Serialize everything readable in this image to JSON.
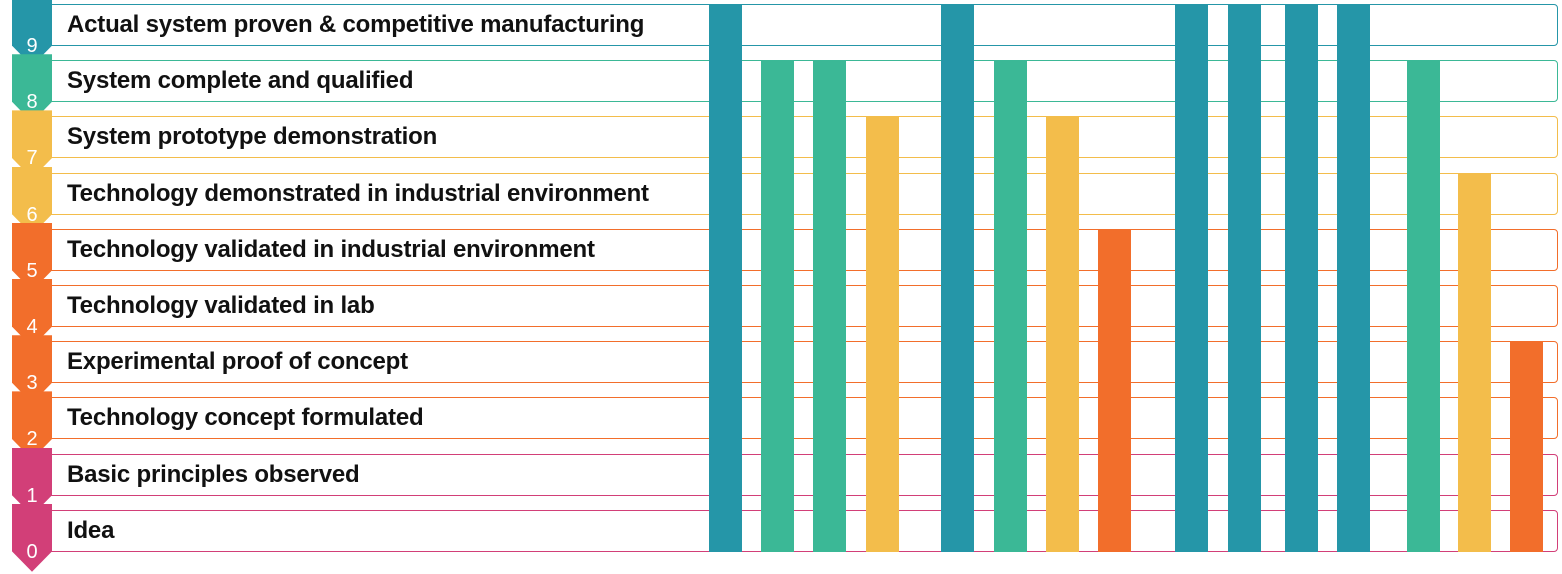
{
  "chart_data": {
    "type": "bar",
    "levels": [
      {
        "level": "9",
        "label": "Actual system proven & competitive manufacturing",
        "color": "#2596a8"
      },
      {
        "level": "8",
        "label": "System complete and qualified",
        "color": "#3bb896"
      },
      {
        "level": "7",
        "label": "System prototype demonstration",
        "color": "#f3bd4b"
      },
      {
        "level": "6",
        "label": "Technology demonstrated in industrial environment",
        "color": "#f3bd4b"
      },
      {
        "level": "5",
        "label": "Technology validated in industrial environment",
        "color": "#f26e2b"
      },
      {
        "level": "4",
        "label": "Technology validated in lab",
        "color": "#f26e2b"
      },
      {
        "level": "3",
        "label": "Experimental proof of concept",
        "color": "#f26e2b"
      },
      {
        "level": "2",
        "label": "Technology concept formulated",
        "color": "#f26e2b"
      },
      {
        "level": "1",
        "label": "Basic principles observed",
        "color": "#d23f78"
      },
      {
        "level": "0",
        "label": "Idea",
        "color": "#d23f78"
      }
    ],
    "values": [
      9,
      8,
      8,
      7,
      9,
      8,
      7,
      5,
      9,
      9,
      9,
      9,
      8,
      6,
      3
    ],
    "bar_colors": {
      "9": "#2596a8",
      "8": "#3bb896",
      "7": "#f3bd4b",
      "6": "#f3bd4b",
      "5": "#f26e2b",
      "4": "#f26e2b",
      "3": "#f26e2b"
    },
    "ylim": [
      0,
      9
    ],
    "grid": false,
    "legend": "none"
  }
}
